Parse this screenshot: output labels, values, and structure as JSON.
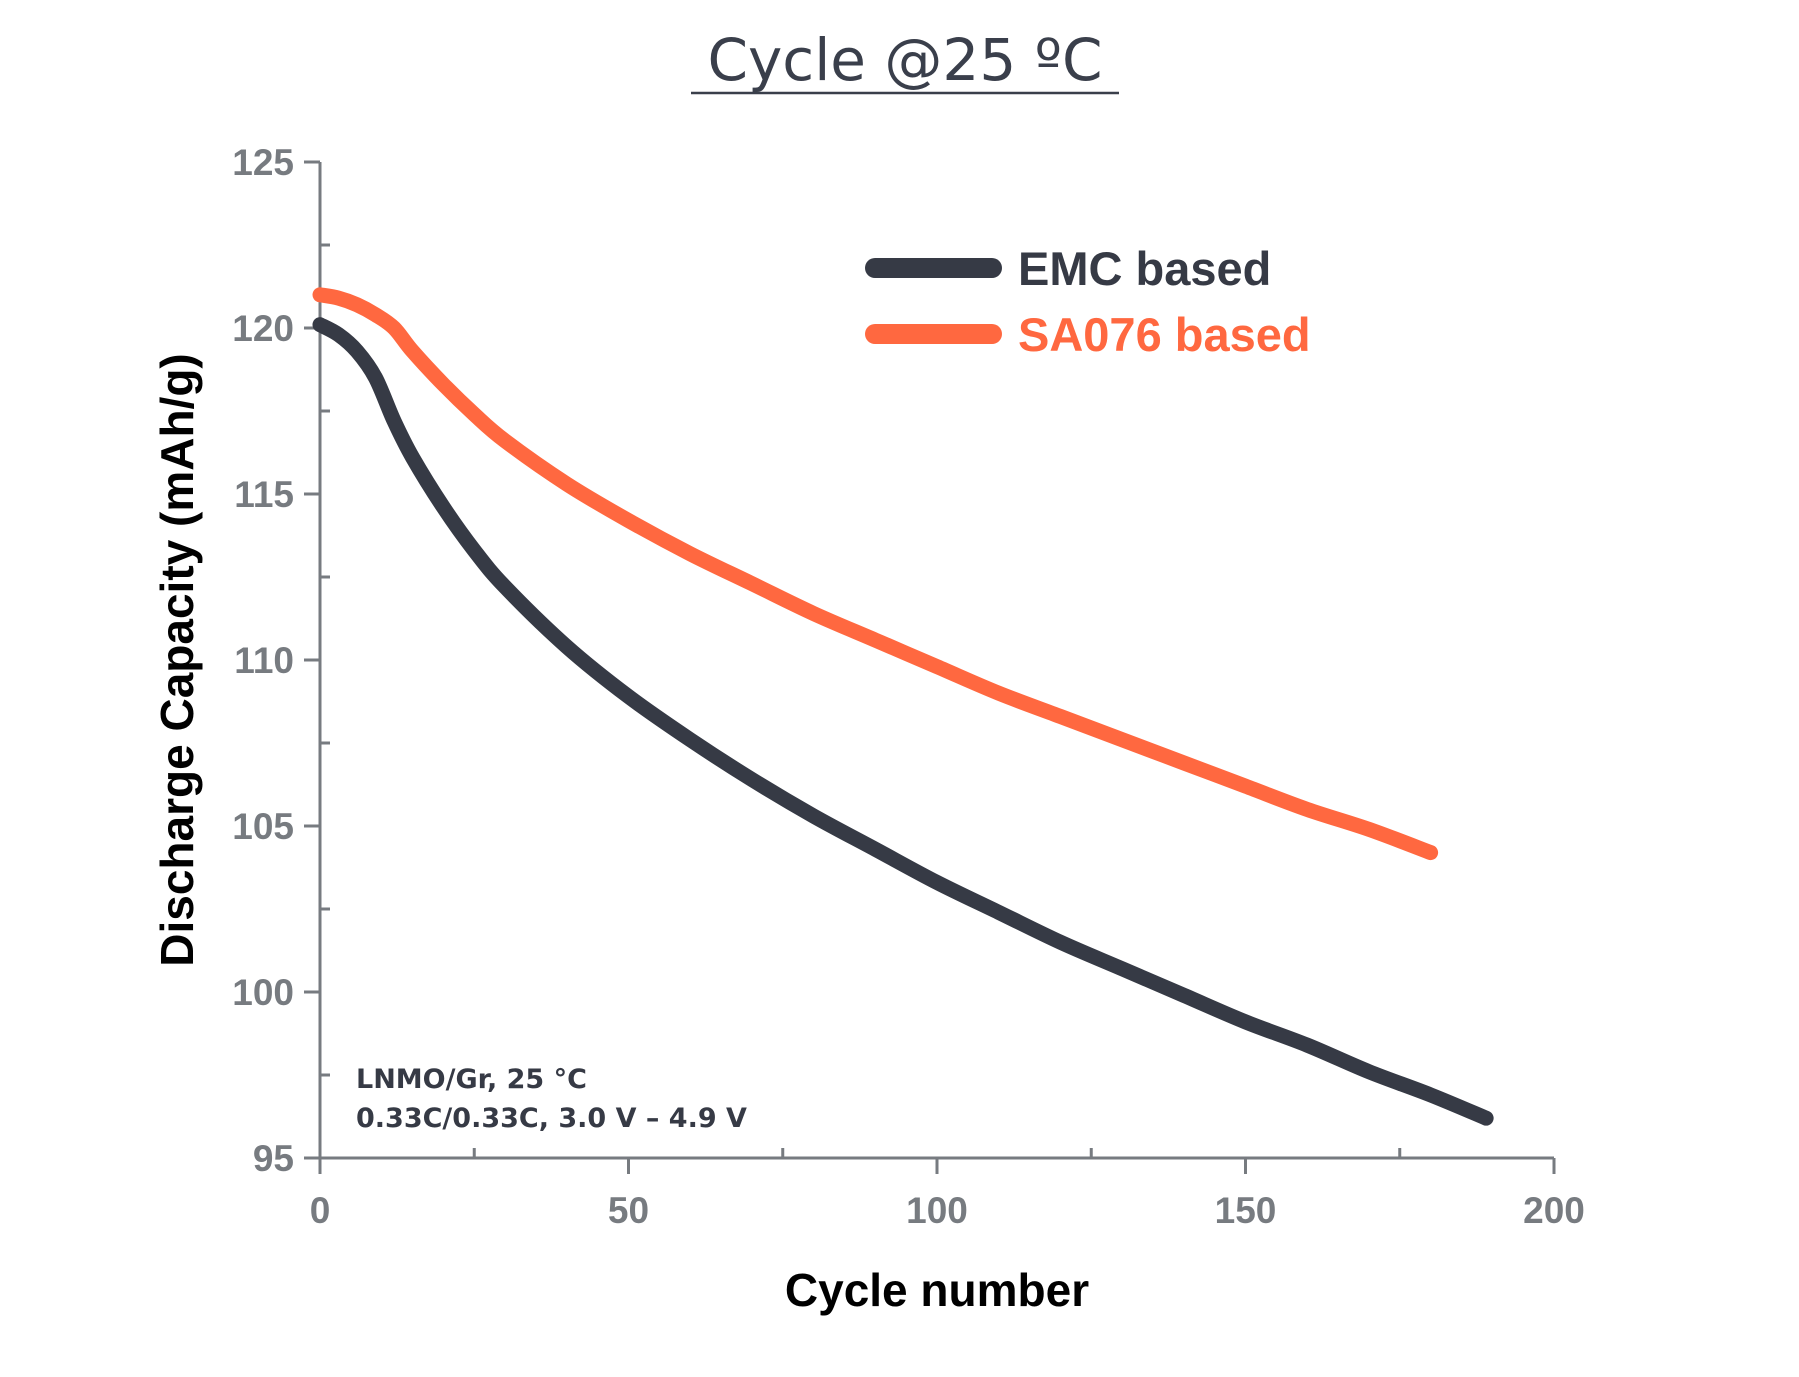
{
  "chart_data": {
    "type": "line",
    "title": "Cycle @25 ºC",
    "xlabel": "Cycle number",
    "ylabel": "Discharge Capacity (mAh/g)",
    "xlim": [
      0,
      200
    ],
    "ylim": [
      95,
      125
    ],
    "x_ticks": [
      "0",
      "50",
      "100",
      "150",
      "200"
    ],
    "y_ticks": [
      "95",
      "100",
      "105",
      "110",
      "115",
      "120",
      "125"
    ],
    "grid": false,
    "legend_position": "top-right",
    "annotations": [
      "LNMO/Gr, 25 °C",
      "0.33C/0.33C, 3.0 V – 4.9 V"
    ],
    "series": [
      {
        "name": "EMC based",
        "color": "#363a45",
        "x": [
          0,
          3,
          6,
          9,
          12,
          15,
          20,
          25,
          30,
          40,
          50,
          60,
          70,
          80,
          90,
          100,
          110,
          120,
          130,
          140,
          150,
          160,
          170,
          180,
          189
        ],
        "y": [
          120.1,
          119.8,
          119.3,
          118.5,
          117.2,
          116.1,
          114.6,
          113.3,
          112.2,
          110.4,
          108.9,
          107.6,
          106.4,
          105.3,
          104.3,
          103.3,
          102.4,
          101.5,
          100.7,
          99.9,
          99.1,
          98.4,
          97.6,
          96.9,
          96.2
        ]
      },
      {
        "name": "SA076 based",
        "color": "#ff6840",
        "x": [
          0,
          3,
          6,
          9,
          12,
          15,
          20,
          25,
          30,
          40,
          50,
          60,
          70,
          80,
          90,
          100,
          110,
          120,
          130,
          140,
          150,
          160,
          170,
          180
        ],
        "y": [
          121.0,
          120.9,
          120.7,
          120.4,
          120.0,
          119.3,
          118.3,
          117.4,
          116.6,
          115.3,
          114.2,
          113.2,
          112.3,
          111.4,
          110.6,
          109.8,
          109.0,
          108.3,
          107.6,
          106.9,
          106.2,
          105.5,
          104.9,
          104.2
        ]
      }
    ]
  }
}
